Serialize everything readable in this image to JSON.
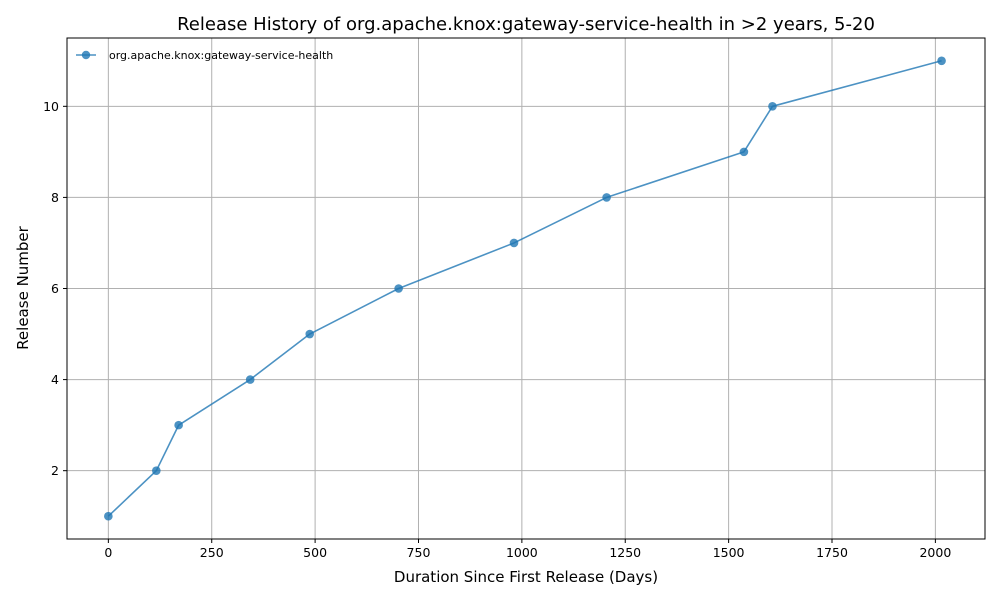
{
  "chart_data": {
    "type": "line",
    "title": "Release History of org.apache.knox:gateway-service-health in >2 years, 5-20",
    "xlabel": "Duration Since First Release (Days)",
    "ylabel": "Release Number",
    "xlim": [
      -100,
      2120
    ],
    "ylim": [
      0.5,
      11.5
    ],
    "xticks": [
      0,
      250,
      500,
      750,
      1000,
      1250,
      1500,
      1750,
      2000
    ],
    "xtick_labels": [
      "0",
      "250",
      "500",
      "750",
      "1000",
      "1250",
      "1500",
      "1750",
      "2000"
    ],
    "yticks": [
      2,
      4,
      6,
      8,
      10
    ],
    "ytick_labels": [
      "2",
      "4",
      "6",
      "8",
      "10"
    ],
    "grid": true,
    "legend_position": "top-left",
    "series": [
      {
        "name": "org.apache.knox:gateway-service-health",
        "color": "#1f77b4",
        "marker": "circle",
        "x": [
          0,
          116,
          170,
          343,
          487,
          702,
          981,
          1205,
          1537,
          1606,
          2015
        ],
        "y": [
          1,
          2,
          3,
          4,
          5,
          6,
          7,
          8,
          9,
          10,
          11
        ]
      }
    ]
  }
}
